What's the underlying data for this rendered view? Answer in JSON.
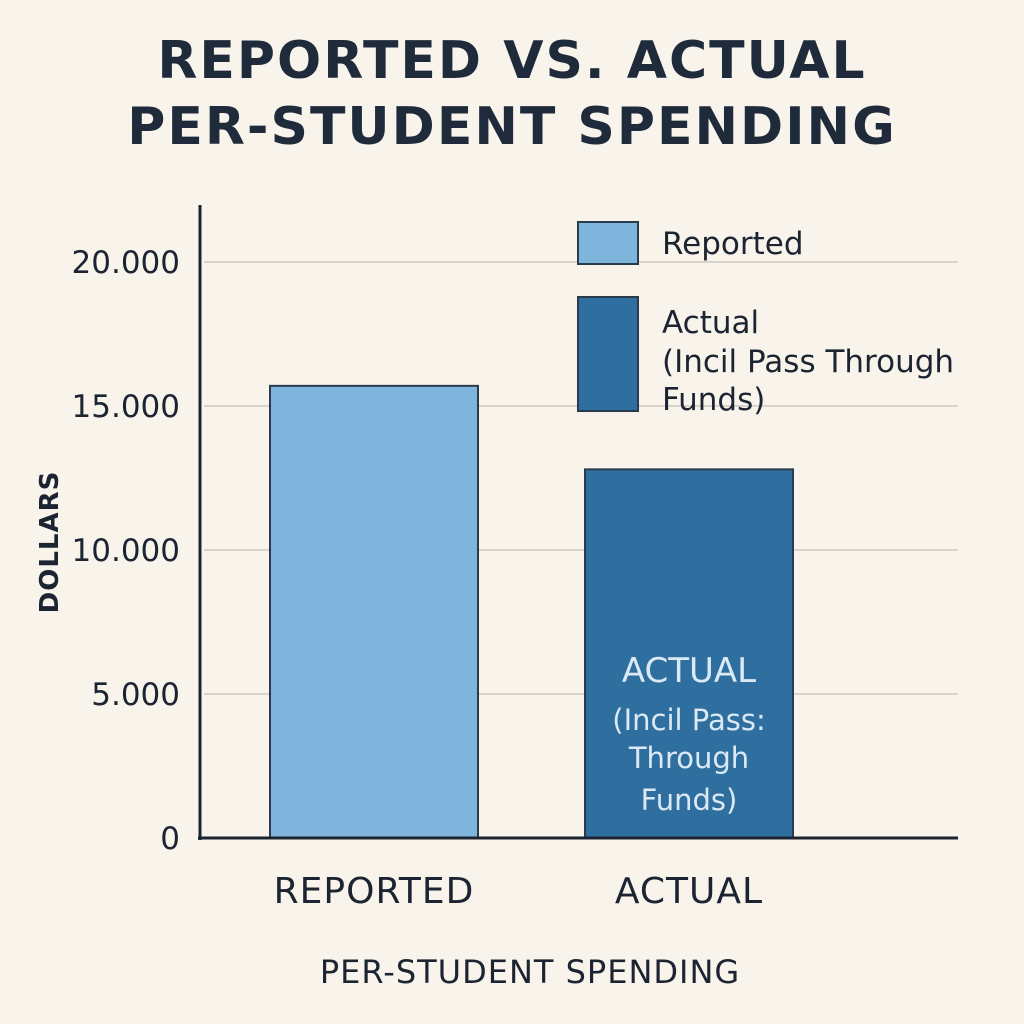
{
  "chart_data": {
    "type": "bar",
    "title_lines": [
      "REPORTED VS. ACTUAL",
      "PER-STUDENT SPENDING"
    ],
    "categories": [
      "REPORTED",
      "ACTUAL"
    ],
    "values": [
      15700,
      12800
    ],
    "colors": [
      "#7fb4dc",
      "#2f6f9f"
    ],
    "xlabel": "PER-STUDENT SPENDING",
    "ylabel": "DOLLARS",
    "ylim": [
      0,
      20000
    ],
    "yticks": [
      {
        "value": 0,
        "label": "0"
      },
      {
        "value": 5000,
        "label": "5.000"
      },
      {
        "value": 10000,
        "label": "10.000"
      },
      {
        "value": 15000,
        "label": "15.000"
      },
      {
        "value": 20000,
        "label": "20.000"
      }
    ],
    "grid": true,
    "legend_position": "top-right",
    "legend": [
      {
        "color": "#7fb4dc",
        "lines": [
          "Reported"
        ]
      },
      {
        "color": "#2f6f9f",
        "lines": [
          "Actual",
          "(Incil Pass Through",
          "Funds)"
        ]
      }
    ],
    "annotations": [
      {
        "bar": 1,
        "lines": [
          "ACTUAL",
          "(Incil Pass:",
          "Through",
          "Funds)"
        ]
      }
    ]
  }
}
